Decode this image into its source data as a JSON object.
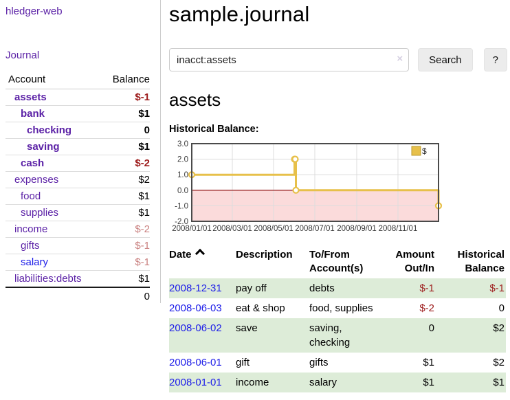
{
  "app": {
    "title": "hledger-web"
  },
  "nav": {
    "journal": "Journal"
  },
  "colors": {
    "link_purple": "#5b21a6",
    "link_blue": "#1d1de8",
    "negative_dark": "#9d1c1c",
    "negative_soft": "#c9807f",
    "stripe_green": "#ddecd8",
    "series_gold": "#e7c04a"
  },
  "sidebar": {
    "headers": {
      "account": "Account",
      "balance": "Balance"
    },
    "accounts": [
      {
        "name": "assets",
        "balance": "$-1",
        "depth": 0,
        "bold": true,
        "balance_class": "neg"
      },
      {
        "name": "bank",
        "balance": "$1",
        "depth": 1,
        "bold": true,
        "balance_class": ""
      },
      {
        "name": "checking",
        "balance": "0",
        "depth": 2,
        "bold": true,
        "balance_class": ""
      },
      {
        "name": "saving",
        "balance": "$1",
        "depth": 2,
        "bold": true,
        "balance_class": ""
      },
      {
        "name": "cash",
        "balance": "$-2",
        "depth": 1,
        "bold": true,
        "balance_class": "neg"
      },
      {
        "name": "expenses",
        "balance": "$2",
        "depth": 0,
        "bold": false,
        "balance_class": ""
      },
      {
        "name": "food",
        "balance": "$1",
        "depth": 1,
        "bold": false,
        "balance_class": ""
      },
      {
        "name": "supplies",
        "balance": "$1",
        "depth": 1,
        "bold": false,
        "balance_class": ""
      },
      {
        "name": "income",
        "balance": "$-2",
        "depth": 0,
        "bold": false,
        "balance_class": "neg-soft"
      },
      {
        "name": "gifts",
        "balance": "$-1",
        "depth": 1,
        "bold": false,
        "balance_class": "neg-soft"
      },
      {
        "name": "salary",
        "balance": "$-1",
        "depth": 1,
        "bold": false,
        "balance_class": "neg-soft",
        "link_color": "blue"
      },
      {
        "name": "liabilities:debts",
        "balance": "$1",
        "depth": 0,
        "bold": false,
        "balance_class": ""
      }
    ],
    "total": "0"
  },
  "main": {
    "title": "sample.journal",
    "account_heading": "assets",
    "chart_label": "Historical Balance:"
  },
  "search": {
    "value": "inacct:assets",
    "clear_icon": "×",
    "button_label": "Search",
    "help_label": "?"
  },
  "chart_data": {
    "type": "line-step",
    "title": "Historical Balance:",
    "x_range": [
      "2008/01/01",
      "2008/12/31"
    ],
    "ylim": [
      -2,
      3
    ],
    "y_ticks": [
      "3.0",
      "2.0",
      "1.0",
      "0.0",
      "-1.0",
      "-2.0"
    ],
    "x_ticks": [
      "2008/01/01",
      "2008/03/01",
      "2008/05/01",
      "2008/07/01",
      "2008/09/01",
      "2008/11/01"
    ],
    "grid": true,
    "negative_region_color": "#fbdbdb",
    "zero_line_color": "#8b0000",
    "legend": {
      "label": "$",
      "position": "top-right"
    },
    "series": [
      {
        "name": "$",
        "color": "#e7c04a",
        "points": [
          [
            "2008-01-01",
            1
          ],
          [
            "2008-06-01",
            2
          ],
          [
            "2008-06-02",
            2
          ],
          [
            "2008-06-03",
            0
          ],
          [
            "2008-12-31",
            -1
          ]
        ]
      }
    ]
  },
  "register": {
    "headers": {
      "date": "Date",
      "description": "Description",
      "accounts": "To/From Account(s)",
      "amount": "Amount Out/In",
      "balance": "Historical Balance"
    },
    "sort": "ascending",
    "rows": [
      {
        "date": "2008-12-31",
        "description": "pay off",
        "accounts": "debts",
        "amount": "$-1",
        "amount_class": "neg",
        "balance": "$-1",
        "balance_class": "neg"
      },
      {
        "date": "2008-06-03",
        "description": "eat & shop",
        "accounts": "food, supplies",
        "amount": "$-2",
        "amount_class": "neg",
        "balance": "0",
        "balance_class": ""
      },
      {
        "date": "2008-06-02",
        "description": "save",
        "accounts": "saving, checking",
        "amount": "0",
        "amount_class": "",
        "balance": "$2",
        "balance_class": ""
      },
      {
        "date": "2008-06-01",
        "description": "gift",
        "accounts": "gifts",
        "amount": "$1",
        "amount_class": "",
        "balance": "$2",
        "balance_class": ""
      },
      {
        "date": "2008-01-01",
        "description": "income",
        "accounts": "salary",
        "amount": "$1",
        "amount_class": "",
        "balance": "$1",
        "balance_class": ""
      }
    ]
  }
}
